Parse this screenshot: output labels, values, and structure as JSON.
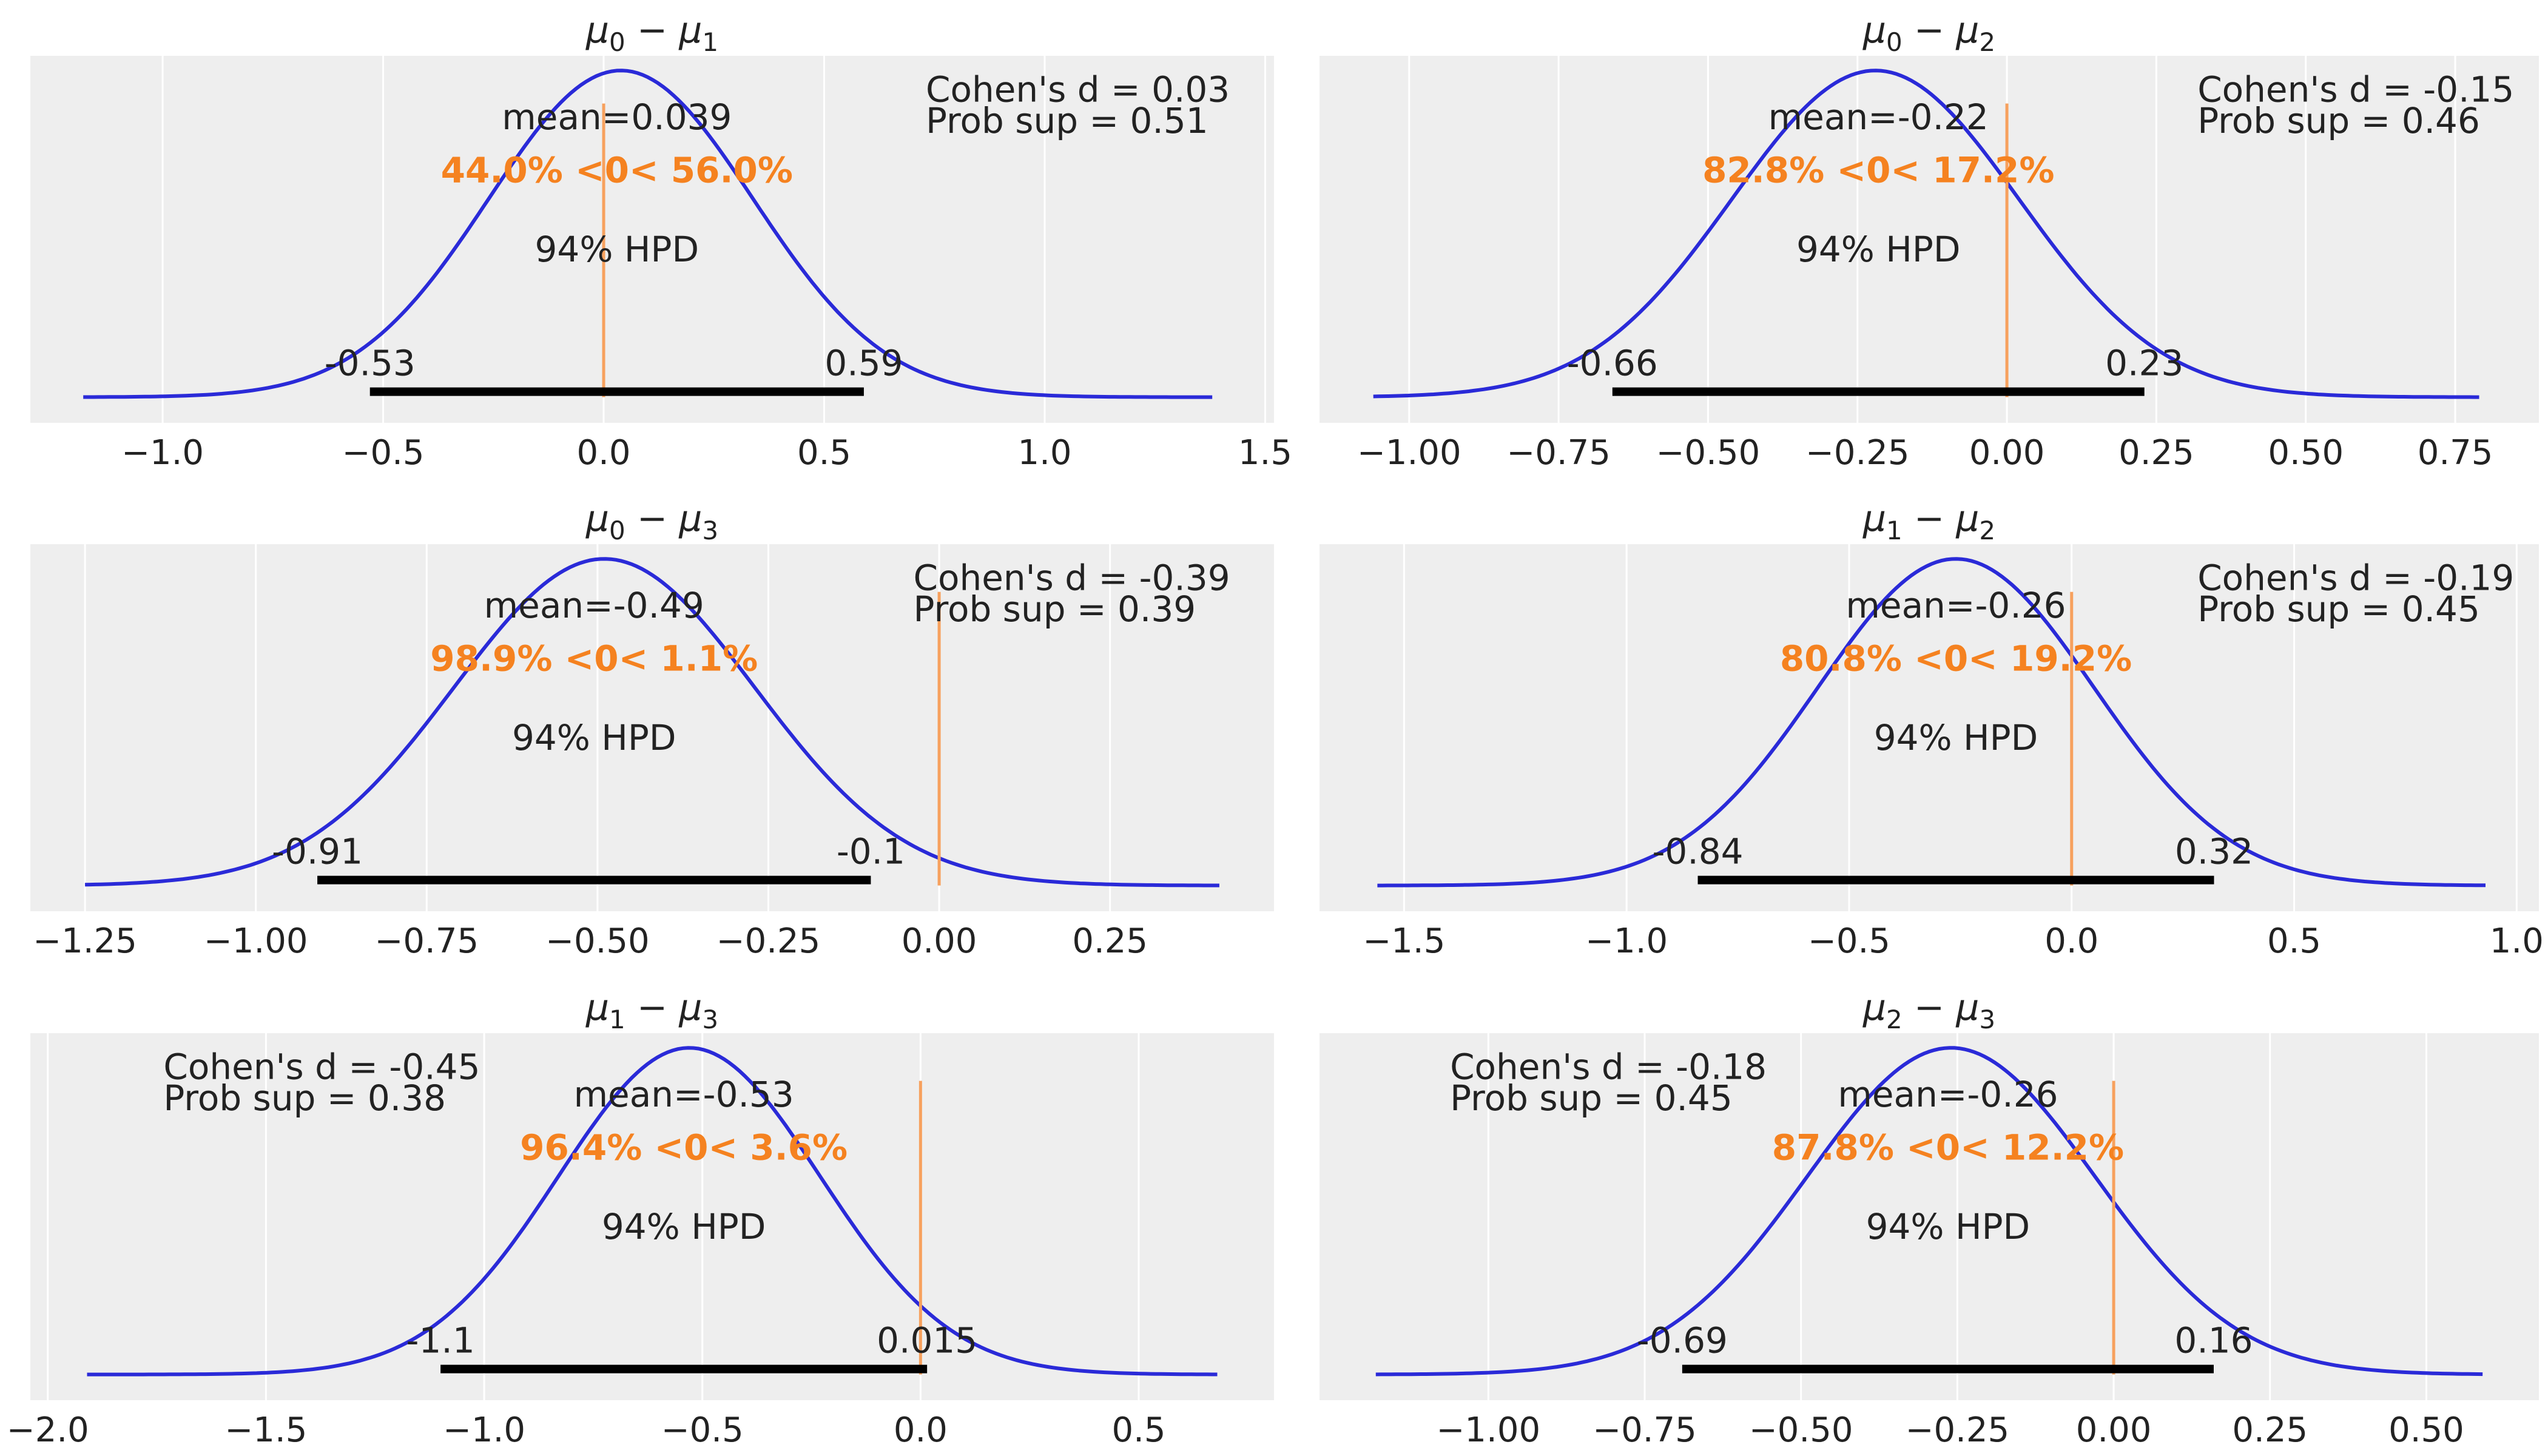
{
  "colors": {
    "kde": "#2a2ad8",
    "ref": "#f58220",
    "ref_line": "#f7a15e",
    "hpd": "#000000"
  },
  "chart_data": [
    {
      "type": "area",
      "title": "μ0 − μ1",
      "title_main": "μ",
      "title_a": "0",
      "title_b": "1",
      "mean_label": "mean=0.039",
      "mean": 0.039,
      "sd": 0.3,
      "ref_label": "44.0% <0< 56.0%",
      "ref_value": 0,
      "hpd_label": "94% HPD",
      "hpd_low": -0.53,
      "hpd_high": 0.59,
      "hpd_low_label": "-0.53",
      "hpd_high_label": "0.59",
      "cohen_label": "Cohen's d = 0.03",
      "prob_sup_label": "Prob sup = 0.51",
      "stats_pos": "right",
      "xlim": [
        -1.3,
        1.52
      ],
      "kde_range": [
        -1.18,
        1.38
      ],
      "ticks": [
        -1.0,
        -0.5,
        0.0,
        0.5,
        1.0,
        1.5
      ],
      "tick_labels": [
        "−1.0",
        "−0.5",
        "0.0",
        "0.5",
        "1.0",
        "1.5"
      ]
    },
    {
      "type": "area",
      "title": "μ0 − μ2",
      "title_main": "μ",
      "title_a": "0",
      "title_b": "2",
      "mean_label": "mean=-0.22",
      "mean": -0.22,
      "sd": 0.24,
      "ref_label": "82.8% <0< 17.2%",
      "ref_value": 0,
      "hpd_label": "94% HPD",
      "hpd_low": -0.66,
      "hpd_high": 0.23,
      "hpd_low_label": "-0.66",
      "hpd_high_label": "0.23",
      "cohen_label": "Cohen's d = -0.15",
      "prob_sup_label": "Prob sup = 0.46",
      "stats_pos": "right",
      "xlim": [
        -1.15,
        0.89
      ],
      "kde_range": [
        -1.06,
        0.79
      ],
      "ticks": [
        -1.0,
        -0.75,
        -0.5,
        -0.25,
        0.0,
        0.25,
        0.5,
        0.75
      ],
      "tick_labels": [
        "−1.00",
        "−0.75",
        "−0.50",
        "−0.25",
        "0.00",
        "0.25",
        "0.50",
        "0.75"
      ]
    },
    {
      "type": "area",
      "title": "μ0 − μ3",
      "title_main": "μ",
      "title_a": "0",
      "title_b": "3",
      "mean_label": "mean=-0.49",
      "mean": -0.49,
      "sd": 0.22,
      "ref_label": "98.9% <0< 1.1%",
      "ref_value": 0,
      "hpd_label": "94% HPD",
      "hpd_low": -0.91,
      "hpd_high": -0.1,
      "hpd_low_label": "-0.91",
      "hpd_high_label": "-0.1",
      "cohen_label": "Cohen's d = -0.39",
      "prob_sup_label": "Prob sup = 0.39",
      "stats_pos": "right",
      "xlim": [
        -1.33,
        0.49
      ],
      "kde_range": [
        -1.25,
        0.41
      ],
      "ticks": [
        -1.25,
        -1.0,
        -0.75,
        -0.5,
        -0.25,
        0.0,
        0.25
      ],
      "tick_labels": [
        "−1.25",
        "−1.00",
        "−0.75",
        "−0.50",
        "−0.25",
        "0.00",
        "0.25"
      ]
    },
    {
      "type": "area",
      "title": "μ1 − μ2",
      "title_main": "μ",
      "title_a": "1",
      "title_b": "2",
      "mean_label": "mean=-0.26",
      "mean": -0.26,
      "sd": 0.31,
      "ref_label": "80.8% <0< 19.2%",
      "ref_value": 0,
      "hpd_label": "94% HPD",
      "hpd_low": -0.84,
      "hpd_high": 0.32,
      "hpd_low_label": "-0.84",
      "hpd_high_label": "0.32",
      "cohen_label": "Cohen's d = -0.19",
      "prob_sup_label": "Prob sup = 0.45",
      "stats_pos": "right",
      "xlim": [
        -1.69,
        1.05
      ],
      "kde_range": [
        -1.56,
        0.93
      ],
      "ticks": [
        -1.5,
        -1.0,
        -0.5,
        0.0,
        0.5,
        1.0
      ],
      "tick_labels": [
        "−1.5",
        "−1.0",
        "−0.5",
        "0.0",
        "0.5",
        "1.0"
      ]
    },
    {
      "type": "area",
      "title": "μ1 − μ3",
      "title_main": "μ",
      "title_a": "1",
      "title_b": "3",
      "mean_label": "mean=-0.53",
      "mean": -0.53,
      "sd": 0.3,
      "ref_label": "96.4% <0< 3.6%",
      "ref_value": 0,
      "hpd_label": "94% HPD",
      "hpd_low": -1.1,
      "hpd_high": 0.015,
      "hpd_low_label": "-1.1",
      "hpd_high_label": "0.015",
      "cohen_label": "Cohen's d = -0.45",
      "prob_sup_label": "Prob sup = 0.38",
      "stats_pos": "left",
      "xlim": [
        -2.04,
        0.81
      ],
      "kde_range": [
        -1.91,
        0.68
      ],
      "ticks": [
        -2.0,
        -1.5,
        -1.0,
        -0.5,
        0.0,
        0.5
      ],
      "tick_labels": [
        "−2.0",
        "−1.5",
        "−1.0",
        "−0.5",
        "0.0",
        "0.5"
      ]
    },
    {
      "type": "area",
      "title": "μ2 − μ3",
      "title_main": "μ",
      "title_a": "2",
      "title_b": "3",
      "mean_label": "mean=-0.26",
      "mean": -0.26,
      "sd": 0.23,
      "ref_label": "87.8% <0< 12.2%",
      "ref_value": 0,
      "hpd_label": "94% HPD",
      "hpd_low": -0.69,
      "hpd_high": 0.16,
      "hpd_low_label": "-0.69",
      "hpd_high_label": "0.16",
      "cohen_label": "Cohen's d = -0.18",
      "prob_sup_label": "Prob sup = 0.45",
      "stats_pos": "left",
      "xlim": [
        -1.27,
        0.68
      ],
      "kde_range": [
        -1.18,
        0.59
      ],
      "ticks": [
        -1.0,
        -0.75,
        -0.5,
        -0.25,
        0.0,
        0.25,
        0.5
      ],
      "tick_labels": [
        "−1.00",
        "−0.75",
        "−0.50",
        "−0.25",
        "0.00",
        "0.25",
        "0.50"
      ]
    }
  ]
}
